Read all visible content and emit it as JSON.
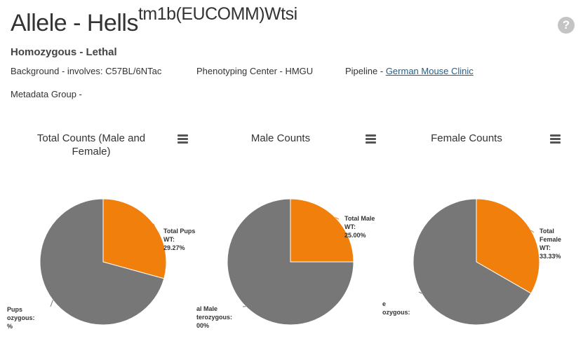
{
  "header": {
    "title_main": "Allele - Hells",
    "title_sup": "tm1b(EUCOMM)Wtsi",
    "help_icon": "?",
    "subtitle": "Homozygous - Lethal"
  },
  "meta": {
    "background": "Background - involves: C57BL/6NTac",
    "center": "Phenotyping Center - HMGU",
    "pipeline_label": "Pipeline - ",
    "pipeline_link": "German Mouse Clinic",
    "metadata_group": "Metadata Group -"
  },
  "colors": {
    "orange": "#f07f0c",
    "gray": "#777777"
  },
  "chart_data": [
    {
      "type": "pie",
      "title": "Total Counts (Male and Female)",
      "slices": [
        {
          "label_lines": [
            "Total Pups",
            "WT:",
            "29.27%"
          ],
          "value": 29.27,
          "color": "#f07f0c"
        },
        {
          "label_lines": [
            "Pups",
            "ozygous:",
            "%"
          ],
          "value": 70.73,
          "color": "#777777"
        }
      ]
    },
    {
      "type": "pie",
      "title": "Male Counts",
      "slices": [
        {
          "label_lines": [
            "Total Male",
            "WT:",
            "25.00%"
          ],
          "value": 25.0,
          "color": "#f07f0c"
        },
        {
          "label_lines": [
            "al Male",
            "terozygous:",
            "00%"
          ],
          "value": 75.0,
          "color": "#777777"
        }
      ]
    },
    {
      "type": "pie",
      "title": "Female Counts",
      "slices": [
        {
          "label_lines": [
            "Total",
            "Female",
            "WT:",
            "33.33%"
          ],
          "value": 33.33,
          "color": "#f07f0c"
        },
        {
          "label_lines": [
            "e",
            "ozygous:"
          ],
          "value": 66.67,
          "color": "#777777"
        }
      ]
    }
  ]
}
